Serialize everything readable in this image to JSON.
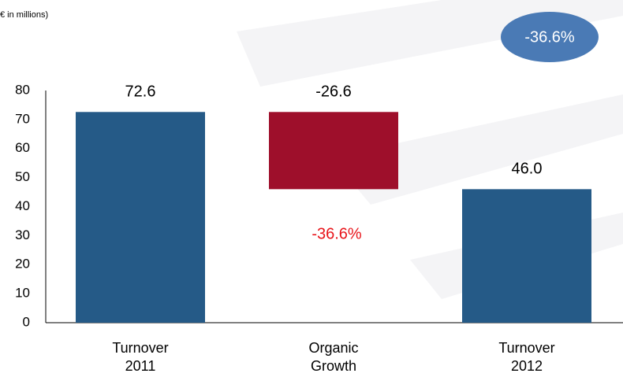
{
  "chart_data": {
    "type": "waterfall",
    "subtitle": "€ in millions)",
    "categories": [
      [
        "Turnover",
        "2011"
      ],
      [
        "Organic",
        "Growth"
      ],
      [
        "Turnover",
        "2012"
      ]
    ],
    "values": [
      72.6,
      -26.6,
      46.0
    ],
    "value_labels": [
      "72.6",
      "-26.6",
      "46.0"
    ],
    "colors": [
      "#255a87",
      "#9e0f2b",
      "#255a87"
    ],
    "ylim": [
      0,
      80
    ],
    "yticks": [
      0,
      10,
      20,
      30,
      40,
      50,
      60,
      70,
      80
    ],
    "grid": false,
    "annotations": [
      "-36.6%",
      "-36.6%"
    ]
  }
}
